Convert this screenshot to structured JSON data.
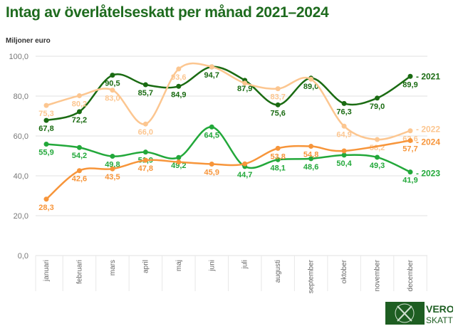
{
  "chart_data": {
    "type": "line",
    "title": "Intag av överlåtelseskatt per månad 2021–2024",
    "ylabel": "Miljoner euro",
    "xlabel": "",
    "ylim": [
      0,
      100
    ],
    "yticks": [
      "0,0",
      "20,0",
      "40,0",
      "60,0",
      "80,0",
      "100,0"
    ],
    "grid": true,
    "legend": "right-end-labels",
    "categories": [
      "januari",
      "februari",
      "mars",
      "april",
      "maj",
      "juni",
      "juli",
      "augusti",
      "september",
      "oktober",
      "november",
      "december"
    ],
    "series": [
      {
        "name": "2021",
        "color": "#1a6b12",
        "values": [
          67.8,
          72.2,
          90.5,
          85.7,
          84.9,
          94.7,
          87.9,
          75.6,
          89.0,
          76.3,
          79.0,
          89.9
        ],
        "labels": [
          "67,8",
          "72,2",
          "90,5",
          "85,7",
          "84,9",
          "94,7",
          "87,9",
          "75,6",
          "89,0",
          "76,3",
          "79,0",
          "89,9"
        ]
      },
      {
        "name": "2022",
        "color": "#fcc690",
        "values": [
          75.3,
          80.2,
          83.0,
          66.0,
          93.6,
          94.7,
          86.5,
          83.7,
          88.5,
          64.9,
          58.2,
          62.6
        ],
        "labels": [
          "75,3",
          "80,2",
          "83,0",
          "66,0",
          "93,6",
          null,
          null,
          "83,7",
          null,
          "64,9",
          "58,2",
          "62,6"
        ]
      },
      {
        "name": "2023",
        "color": "#22a83a",
        "values": [
          55.9,
          54.2,
          49.8,
          51.9,
          49.2,
          64.5,
          44.7,
          48.1,
          48.6,
          50.4,
          49.3,
          41.9
        ],
        "labels": [
          "55,9",
          "54,2",
          "49,8",
          "51,9",
          "49,2",
          "64,5",
          "44,7",
          "48,1",
          "48,6",
          "50,4",
          "49,3",
          "41,9"
        ]
      },
      {
        "name": "2024",
        "color": "#f7953a",
        "values": [
          28.3,
          42.6,
          43.5,
          47.8,
          46.9,
          45.9,
          46.0,
          53.8,
          54.8,
          52.5,
          null,
          57.7
        ],
        "labels": [
          "28,3",
          "42,6",
          "43,5",
          "47,8",
          null,
          "45,9",
          null,
          "53,8",
          "54,8",
          null,
          null,
          "57,7"
        ]
      }
    ]
  },
  "logo": {
    "line1": "VERO",
    "line2": "SKATT"
  }
}
